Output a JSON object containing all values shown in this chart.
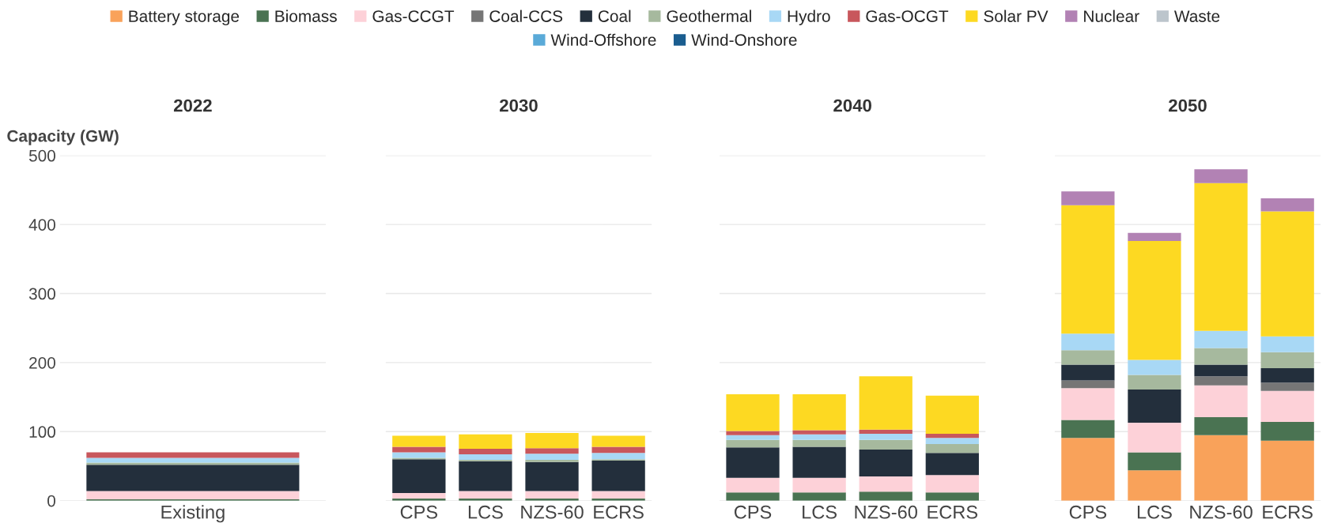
{
  "chart_data": [
    {
      "type": "bar",
      "title": "2022",
      "ylabel": "Capacity (GW)",
      "stacked": true,
      "grid": "y",
      "legend": "top",
      "ylim": [
        0,
        500
      ],
      "yticks": [
        0,
        100,
        200,
        300,
        400,
        500
      ],
      "categories": [
        "Existing"
      ],
      "series": [
        {
          "name": "Battery storage",
          "color": "#f9a25a",
          "values": [
            null
          ]
        },
        {
          "name": "Biomass",
          "color": "#4a7352",
          "values": [
            2
          ]
        },
        {
          "name": "Gas-CCGT",
          "color": "#fdd1d8",
          "values": [
            12
          ]
        },
        {
          "name": "Coal-CCS",
          "color": "#767676",
          "values": [
            null
          ]
        },
        {
          "name": "Coal",
          "color": "#232f3c",
          "values": [
            38
          ]
        },
        {
          "name": "Geothermal",
          "color": "#a6b99e",
          "values": [
            3
          ]
        },
        {
          "name": "Hydro",
          "color": "#a8d8f5",
          "values": [
            7
          ]
        },
        {
          "name": "Gas-OCGT",
          "color": "#c8575c",
          "values": [
            8
          ]
        },
        {
          "name": "Solar PV",
          "color": "#fdd922",
          "values": [
            null
          ]
        },
        {
          "name": "Nuclear",
          "color": "#b282b4",
          "values": [
            null
          ]
        },
        {
          "name": "Waste",
          "color": "#bcc5cc",
          "values": [
            null
          ]
        },
        {
          "name": "Wind-Offshore",
          "color": "#5aaad8",
          "values": [
            null
          ]
        },
        {
          "name": "Wind-Onshore",
          "color": "#1a5d8f",
          "values": [
            null
          ]
        }
      ]
    },
    {
      "type": "bar",
      "title": "2030",
      "stacked": true,
      "grid": "y",
      "tick_labels": "x",
      "ylim": [
        0,
        500
      ],
      "yticks": [
        0,
        100,
        200,
        300,
        400,
        500
      ],
      "categories": [
        "CPS",
        "LCS",
        "NZS-60",
        "ECRS"
      ],
      "series": [
        {
          "color": "#4a7352",
          "values": [
            3,
            3,
            3,
            3
          ]
        },
        {
          "color": "#fdd1d8",
          "values": [
            8,
            11,
            11,
            11
          ]
        },
        {
          "color": "#232f3c",
          "values": [
            49,
            43,
            42,
            44
          ]
        },
        {
          "color": "#a6b99e",
          "values": [
            2,
            2,
            3,
            2
          ]
        },
        {
          "color": "#a8d8f5",
          "values": [
            8,
            8,
            9,
            9
          ]
        },
        {
          "color": "#c8575c",
          "values": [
            8,
            8,
            8,
            9
          ]
        },
        {
          "color": "#fdd922",
          "values": [
            16,
            21,
            22,
            16
          ]
        }
      ]
    },
    {
      "type": "bar",
      "title": "2040",
      "stacked": true,
      "grid": "y",
      "tick_labels": "x",
      "ylim": [
        0,
        500
      ],
      "yticks": [
        0,
        100,
        200,
        300,
        400,
        500
      ],
      "categories": [
        "CPS",
        "LCS",
        "NZS-60",
        "ECRS"
      ],
      "series": [
        {
          "color": "#4a7352",
          "values": [
            12,
            12,
            13,
            12
          ]
        },
        {
          "color": "#fdd1d8",
          "values": [
            21,
            21,
            22,
            25
          ]
        },
        {
          "color": "#232f3c",
          "values": [
            44,
            45,
            39,
            32
          ]
        },
        {
          "color": "#a6b99e",
          "values": [
            11,
            10,
            14,
            13
          ]
        },
        {
          "color": "#a8d8f5",
          "values": [
            7,
            8,
            9,
            9
          ]
        },
        {
          "color": "#c8575c",
          "values": [
            6,
            6,
            6,
            6
          ]
        },
        {
          "color": "#fdd922",
          "values": [
            53,
            52,
            77,
            55
          ]
        }
      ]
    },
    {
      "type": "bar",
      "title": "2050",
      "stacked": true,
      "grid": "y",
      "tick_labels": "x",
      "ylim": [
        0,
        500
      ],
      "yticks": [
        0,
        100,
        200,
        300,
        400,
        500
      ],
      "categories": [
        "CPS",
        "LCS",
        "NZS-60",
        "ECRS"
      ],
      "series": [
        {
          "color": "#f9a25a",
          "values": [
            91,
            44,
            95,
            87
          ]
        },
        {
          "color": "#4a7352",
          "values": [
            26,
            26,
            26,
            27
          ]
        },
        {
          "color": "#fdd1d8",
          "values": [
            46,
            43,
            46,
            45
          ]
        },
        {
          "color": "#767676",
          "values": [
            11,
            null,
            13,
            12
          ]
        },
        {
          "color": "#232f3c",
          "values": [
            23,
            48,
            17,
            21
          ]
        },
        {
          "color": "#a6b99e",
          "values": [
            21,
            21,
            24,
            23
          ]
        },
        {
          "color": "#a8d8f5",
          "values": [
            24,
            22,
            25,
            23
          ]
        },
        {
          "color": "#fdd922",
          "values": [
            186,
            172,
            214,
            181
          ]
        },
        {
          "color": "#b282b4",
          "values": [
            20,
            12,
            20,
            19
          ]
        }
      ]
    }
  ]
}
